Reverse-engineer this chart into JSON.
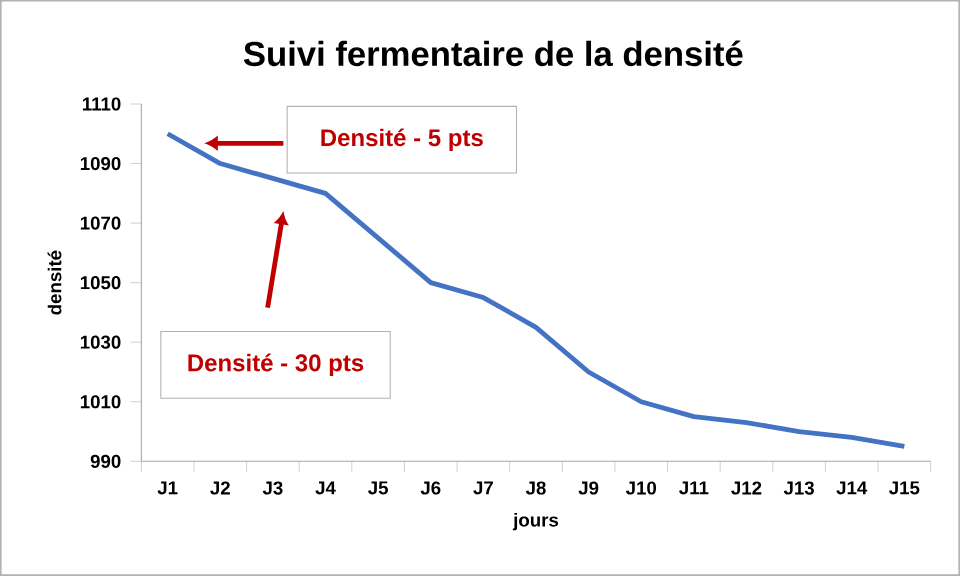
{
  "chart_data": {
    "type": "line",
    "title": "Suivi fermentaire de la densité",
    "xlabel": "jours",
    "ylabel": "densité",
    "categories": [
      "J1",
      "J2",
      "J3",
      "J4",
      "J5",
      "J6",
      "J7",
      "J8",
      "J9",
      "J10",
      "J11",
      "J12",
      "J13",
      "J14",
      "J15"
    ],
    "series": [
      {
        "color": "#4472c4",
        "values": [
          1100,
          1090,
          1085,
          1080,
          1065,
          1050,
          1045,
          1035,
          1020,
          1010,
          1005,
          1003,
          1000,
          998,
          995
        ]
      }
    ],
    "ylim": [
      990,
      1110
    ],
    "yticks": [
      990,
      1010,
      1030,
      1050,
      1070,
      1090,
      1110
    ],
    "grid": false,
    "marker": "none",
    "line_style": "solid",
    "annotations": [
      "Densité - 5 pts",
      "Densité - 30 pts"
    ]
  }
}
